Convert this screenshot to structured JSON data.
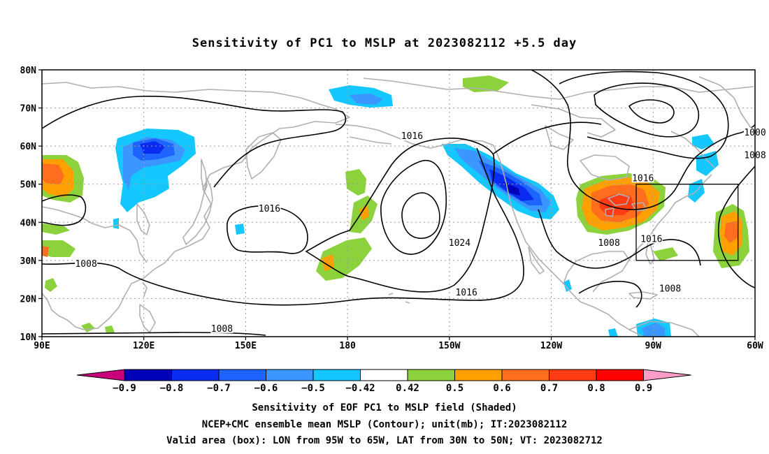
{
  "title": "Sensitivity of PC1 to MSLP at 2023082112 +5.5 day",
  "map": {
    "lon_range": [
      90,
      300
    ],
    "lat_range": [
      10,
      80
    ],
    "lon_ticks": [
      {
        "lon": 90,
        "label": "90E"
      },
      {
        "lon": 120,
        "label": "120E"
      },
      {
        "lon": 150,
        "label": "150E"
      },
      {
        "lon": 180,
        "label": "180"
      },
      {
        "lon": 210,
        "label": "150W"
      },
      {
        "lon": 240,
        "label": "120W"
      },
      {
        "lon": 270,
        "label": "90W"
      },
      {
        "lon": 300,
        "label": "60W"
      }
    ],
    "lat_ticks": [
      {
        "lat": 10,
        "label": "10N"
      },
      {
        "lat": 20,
        "label": "20N"
      },
      {
        "lat": 30,
        "label": "30N"
      },
      {
        "lat": 40,
        "label": "40N"
      },
      {
        "lat": 50,
        "label": "50N"
      },
      {
        "lat": 60,
        "label": "60N"
      },
      {
        "lat": 70,
        "label": "70N"
      },
      {
        "lat": 80,
        "label": "80N"
      }
    ],
    "valid_box": {
      "lon_min": 265,
      "lon_max": 295,
      "lat_min": 30,
      "lat_max": 50
    },
    "contour_labels": [
      {
        "text": "1016",
        "lon": 199,
        "lat": 62
      },
      {
        "text": "1024",
        "lon": 213,
        "lat": 34
      },
      {
        "text": "1016",
        "lon": 215,
        "lat": 21
      },
      {
        "text": "1016",
        "lon": 157,
        "lat": 43
      },
      {
        "text": "1008",
        "lon": 103,
        "lat": 28.5
      },
      {
        "text": "1008",
        "lon": 143,
        "lat": 11.5
      },
      {
        "text": "1016",
        "lon": 267,
        "lat": 51
      },
      {
        "text": "1008",
        "lon": 257,
        "lat": 34
      },
      {
        "text": "1016",
        "lon": 269.5,
        "lat": 35
      },
      {
        "text": "1008",
        "lon": 275,
        "lat": 22
      },
      {
        "text": "1000",
        "lon": 300,
        "lat": 63
      },
      {
        "text": "1008",
        "lon": 300,
        "lat": 57
      }
    ]
  },
  "colorbar": {
    "labels": [
      "−0.9",
      "−0.8",
      "−0.7",
      "−0.6",
      "−0.5",
      "−0.42",
      "0.42",
      "0.5",
      "0.6",
      "0.7",
      "0.8",
      "0.9"
    ],
    "colors": [
      "#c8007c",
      "#0000b8",
      "#0a2cf0",
      "#1e64ff",
      "#3c96ff",
      "#14c8ff",
      "#ffffff",
      "#8cd23c",
      "#ffa000",
      "#ff6e1e",
      "#ff3c14",
      "#ff0000",
      "#ff9cc8"
    ]
  },
  "caption": [
    "Sensitivity of EOF PC1 to MSLP field (Shaded)",
    "NCEP+CMC ensemble mean MSLP (Contour); unit(mb); IT:2023082112",
    "Valid area (box): LON from 95W to 65W, LAT from 30N to 50N; VT: 2023082712"
  ]
}
